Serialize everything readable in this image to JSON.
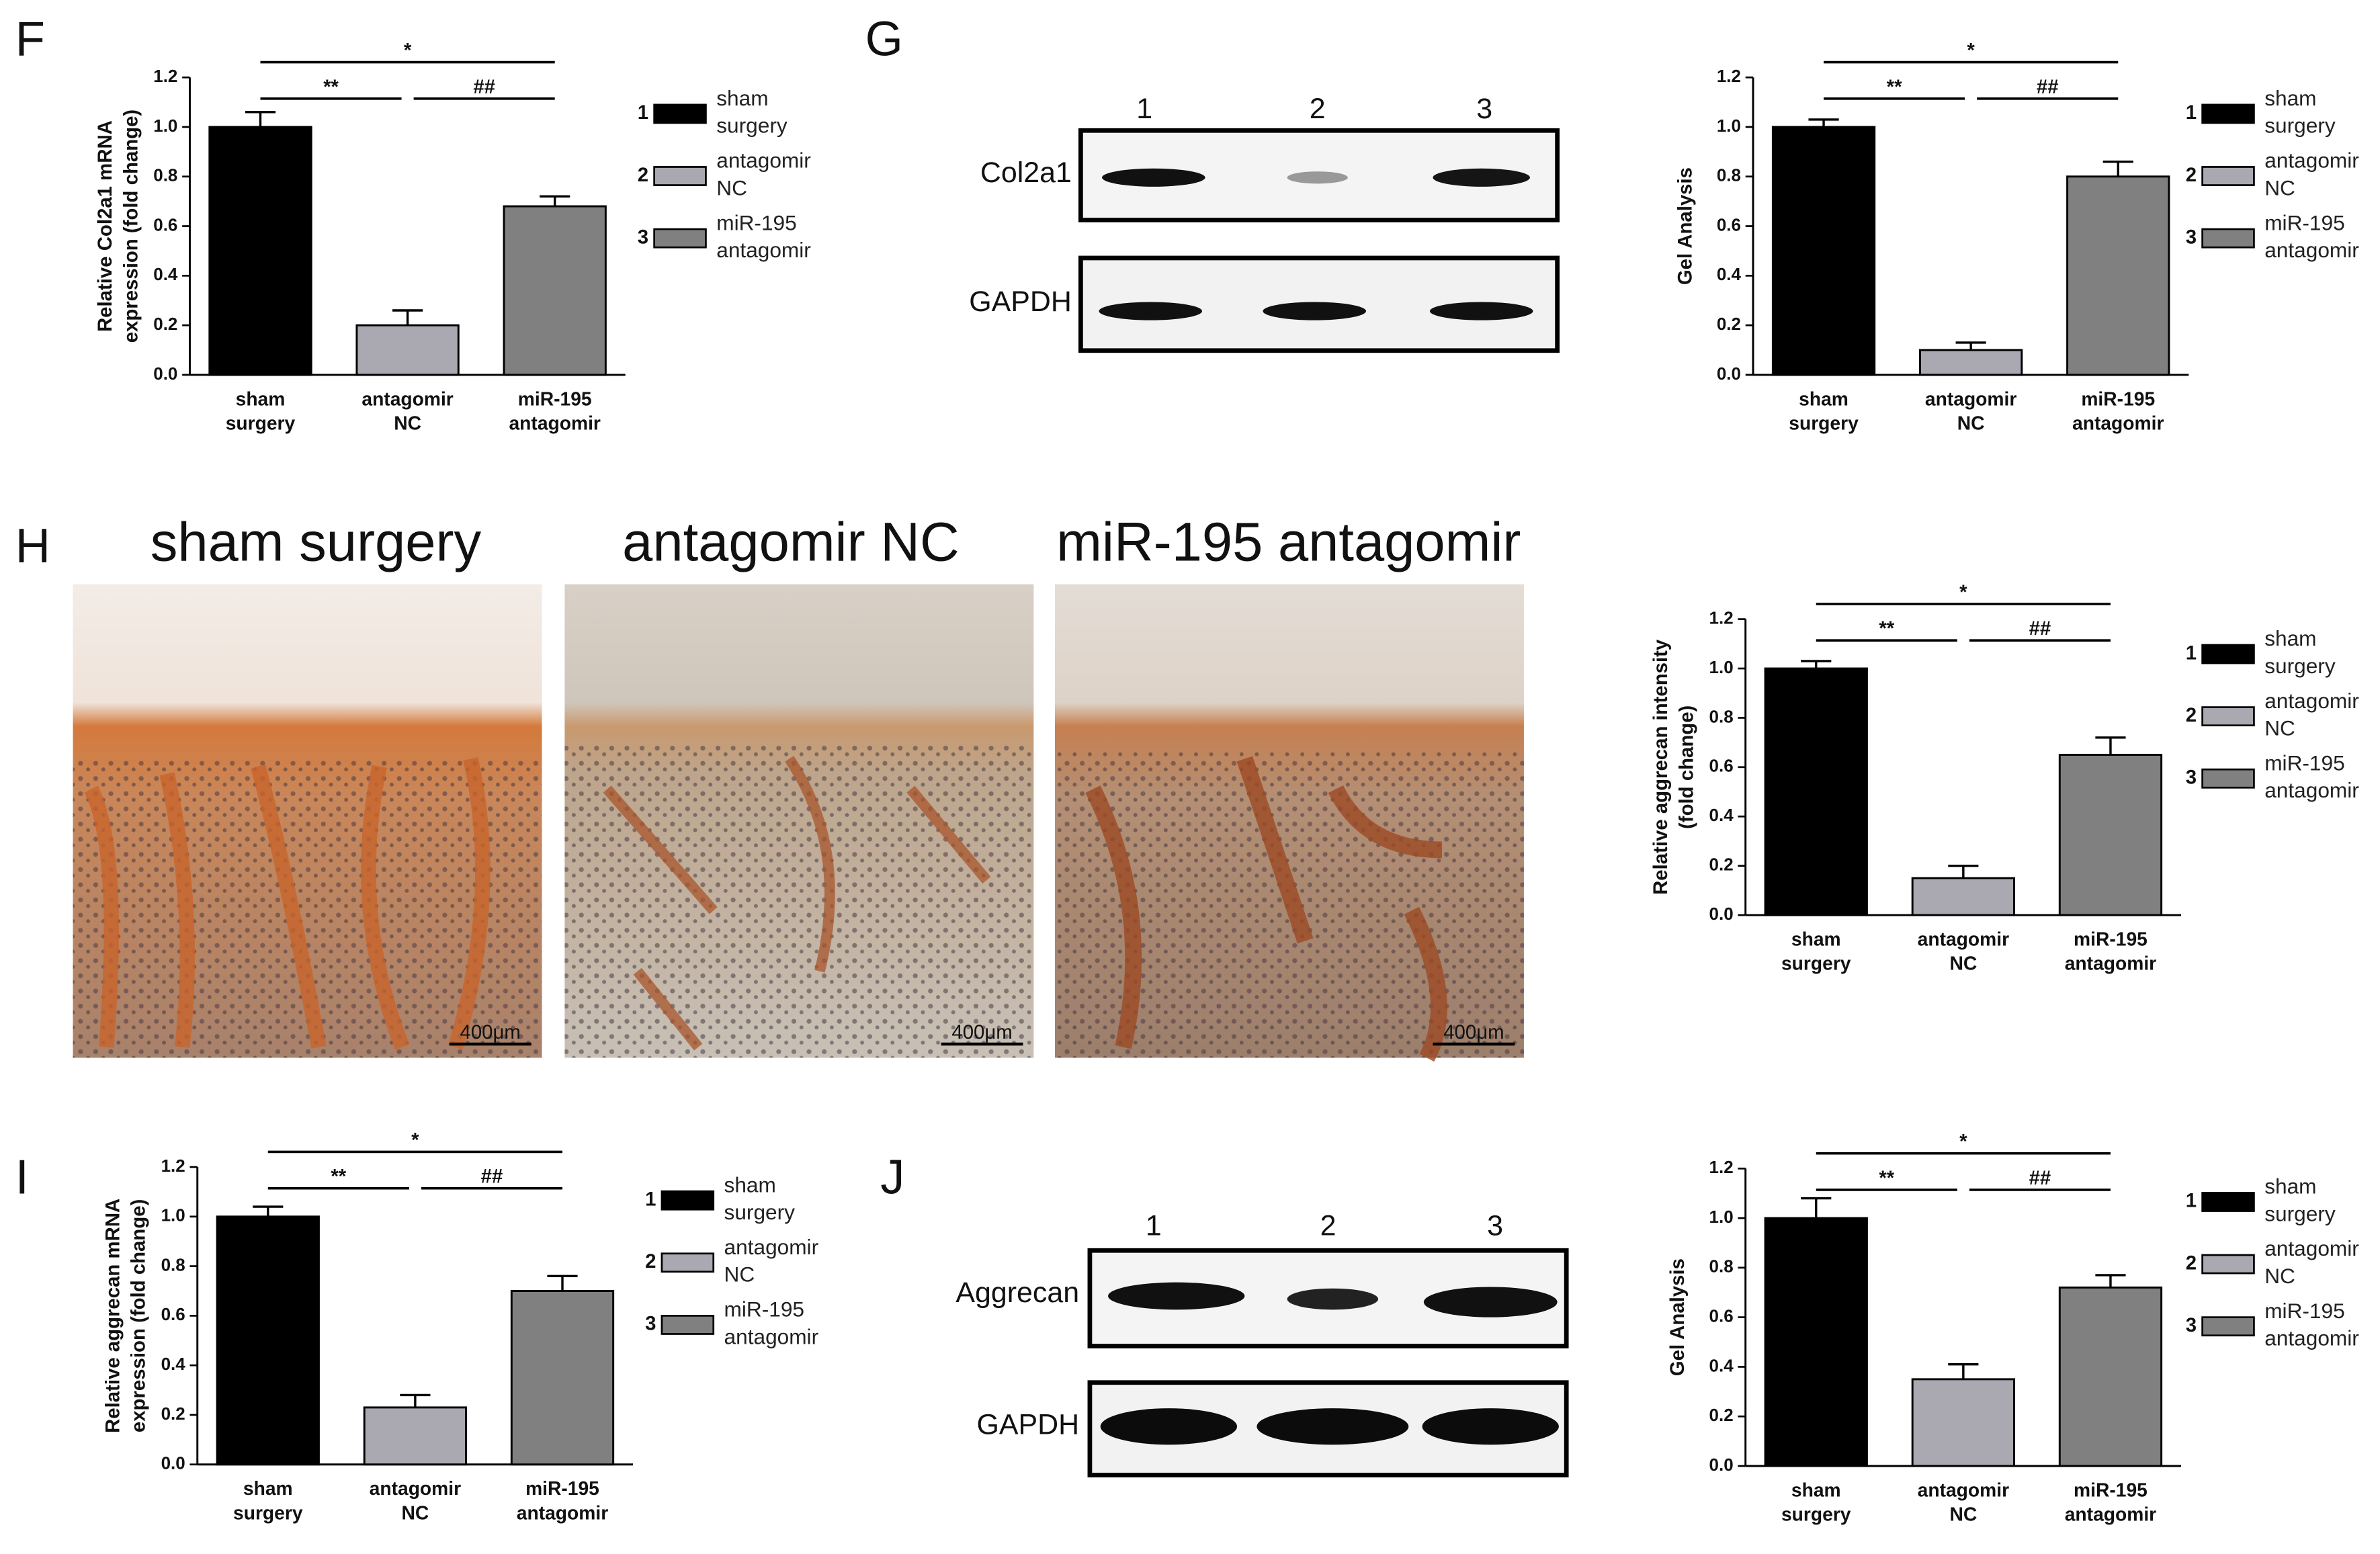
{
  "chart_data": [
    {
      "panel": "F",
      "type": "bar",
      "ylabel": [
        "Relative Col2a1 mRNA",
        "expression (fold change)"
      ],
      "categories": [
        "sham surgery",
        "antagomir NC",
        "miR-195 antagomir"
      ],
      "legend_numbers": [
        "1",
        "2",
        "3"
      ],
      "values": [
        1.0,
        0.2,
        0.68
      ],
      "errors": [
        0.06,
        0.06,
        0.04
      ],
      "colors": [
        "#000000",
        "#aaa8b0",
        "#808080"
      ],
      "ylim": [
        0,
        1.2
      ],
      "yticks": [
        {
          "value": 0,
          "label": "0.0"
        },
        0.2,
        0.4,
        0.6,
        0.8,
        {
          "value": 1,
          "label": "1.0"
        },
        1.2
      ],
      "annotations": [
        {
          "text": "*",
          "from": 0,
          "to": 2
        },
        {
          "text": "**",
          "from": 0,
          "to": 1
        },
        {
          "text": "##",
          "from": 1,
          "to": 2
        }
      ]
    },
    {
      "panel": "G",
      "type": "bar",
      "ylabel": [
        "Gel Analysis"
      ],
      "categories": [
        "sham surgery",
        "antagomir NC",
        "miR-195 antagomir"
      ],
      "legend_numbers": [
        "1",
        "2",
        "3"
      ],
      "values": [
        1.0,
        0.1,
        0.8
      ],
      "errors": [
        0.03,
        0.03,
        0.06
      ],
      "colors": [
        "#000000",
        "#aaa8b0",
        "#808080"
      ],
      "ylim": [
        0,
        1.2
      ],
      "yticks": [
        {
          "value": 0,
          "label": "0.0"
        },
        0.2,
        0.4,
        0.6,
        0.8,
        {
          "value": 1,
          "label": "1.0"
        },
        1.2
      ],
      "annotations": [
        {
          "text": "*",
          "from": 0,
          "to": 2
        },
        {
          "text": "**",
          "from": 0,
          "to": 1
        },
        {
          "text": "##",
          "from": 1,
          "to": 2
        }
      ]
    },
    {
      "panel": "H",
      "type": "bar",
      "ylabel": [
        "Relative aggrecan  intensity",
        "(fold change)"
      ],
      "categories": [
        "sham surgery",
        "antagomir NC",
        "miR-195 antagomir"
      ],
      "legend_numbers": [
        "1",
        "2",
        "3"
      ],
      "values": [
        1.0,
        0.15,
        0.65
      ],
      "errors": [
        0.03,
        0.05,
        0.07
      ],
      "colors": [
        "#000000",
        "#aaa8b0",
        "#808080"
      ],
      "ylim": [
        0,
        1.2
      ],
      "yticks": [
        {
          "value": 0,
          "label": "0.0"
        },
        0.2,
        0.4,
        0.6,
        0.8,
        {
          "value": 1,
          "label": "1.0"
        },
        1.2
      ],
      "annotations": [
        {
          "text": "*",
          "from": 0,
          "to": 2
        },
        {
          "text": "**",
          "from": 0,
          "to": 1
        },
        {
          "text": "##",
          "from": 1,
          "to": 2
        }
      ]
    },
    {
      "panel": "I",
      "type": "bar",
      "ylabel": [
        "Relative aggrecan mRNA",
        "expression (fold change)"
      ],
      "categories": [
        "sham surgery",
        "antagomir NC",
        "miR-195 antagomir"
      ],
      "legend_numbers": [
        "1",
        "2",
        "3"
      ],
      "values": [
        1.0,
        0.23,
        0.7
      ],
      "errors": [
        0.04,
        0.05,
        0.06
      ],
      "colors": [
        "#000000",
        "#aaa8b0",
        "#808080"
      ],
      "ylim": [
        0,
        1.2
      ],
      "yticks": [
        {
          "value": 0,
          "label": "0.0"
        },
        0.2,
        0.4,
        0.6,
        0.8,
        {
          "value": 1,
          "label": "1.0"
        },
        1.2
      ],
      "annotations": [
        {
          "text": "*",
          "from": 0,
          "to": 2
        },
        {
          "text": "**",
          "from": 0,
          "to": 1
        },
        {
          "text": "##",
          "from": 1,
          "to": 2
        }
      ]
    },
    {
      "panel": "J",
      "type": "bar",
      "ylabel": [
        "Gel Analysis"
      ],
      "categories": [
        "sham surgery",
        "antagomir NC",
        "miR-195 antagomir"
      ],
      "legend_numbers": [
        "1",
        "2",
        "3"
      ],
      "values": [
        1.0,
        0.35,
        0.72
      ],
      "errors": [
        0.08,
        0.06,
        0.05
      ],
      "colors": [
        "#000000",
        "#aaa8b0",
        "#808080"
      ],
      "ylim": [
        0,
        1.2
      ],
      "yticks": [
        {
          "value": 0,
          "label": "0.0"
        },
        0.2,
        0.4,
        0.6,
        0.8,
        {
          "value": 1,
          "label": "1.0"
        },
        1.2
      ],
      "annotations": [
        {
          "text": "*",
          "from": 0,
          "to": 2
        },
        {
          "text": "**",
          "from": 0,
          "to": 1
        },
        {
          "text": "##",
          "from": 1,
          "to": 2
        }
      ]
    }
  ],
  "blots": [
    {
      "lanes": [
        "1",
        "2",
        "3"
      ],
      "rows": [
        "Col2a1",
        "GAPDH"
      ]
    },
    {
      "lanes": [
        "1",
        "2",
        "3"
      ],
      "rows": [
        "Aggrecan",
        "GAPDH"
      ]
    }
  ],
  "histology": {
    "titles": [
      "sham surgery",
      "antagomir NC",
      "miR-195 antagomir"
    ],
    "scale_bar": "400μm"
  }
}
